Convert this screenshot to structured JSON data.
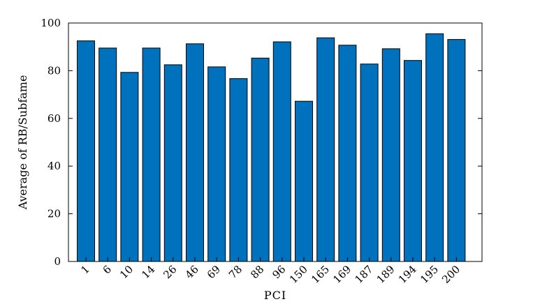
{
  "chart_data": {
    "type": "bar",
    "title": "",
    "xlabel": "PCI",
    "ylabel": "Average of RB/Subfame",
    "categories": [
      "1",
      "6",
      "10",
      "14",
      "26",
      "46",
      "69",
      "78",
      "88",
      "96",
      "150",
      "165",
      "169",
      "187",
      "189",
      "194",
      "195",
      "200"
    ],
    "values": [
      92.5,
      89.5,
      79.3,
      89.5,
      82.5,
      91.3,
      81.6,
      76.7,
      85.3,
      92.1,
      67.2,
      93.8,
      90.7,
      82.8,
      89.2,
      84.3,
      95.5,
      93.1
    ],
    "ylim": [
      0,
      100
    ],
    "yticks": [
      0,
      20,
      40,
      60,
      80,
      100
    ],
    "grid": false,
    "legend": "none",
    "colors": {
      "bar": "#0072BD",
      "bar_edge": "#000000",
      "axes": "#000000"
    }
  }
}
